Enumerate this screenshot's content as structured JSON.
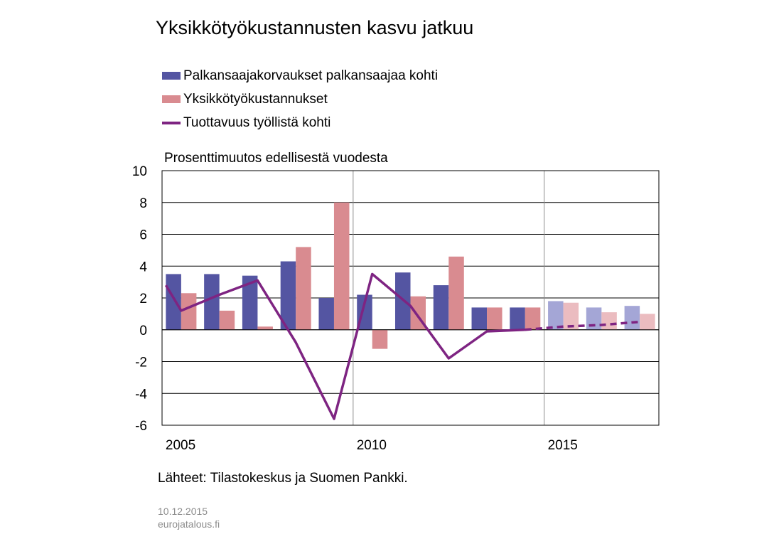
{
  "title": "Yksikkötyökustannusten kasvu jatkuu",
  "unit_label": "Prosenttimuutos edellisestä vuodesta",
  "source": "Lähteet: Tilastokeskus ja Suomen Pankki.",
  "date": "10.12.2015",
  "site": "eurojatalous.fi",
  "colors": {
    "series1": "#5455a2",
    "series1_forecast": "#a4a6d6",
    "series2": "#d98b90",
    "series2_forecast": "#ebbcc0",
    "line": "#7e2482",
    "grid": "#000000"
  },
  "chart_data": {
    "type": "bar",
    "title": "Yksikkötyökustannusten kasvu jatkuu",
    "ylabel": "Prosenttimuutos edellisestä vuodesta",
    "categories": [
      2005,
      2006,
      2007,
      2008,
      2009,
      2010,
      2011,
      2012,
      2013,
      2014,
      2015,
      2016,
      2017
    ],
    "x_tick_labels": [
      "2005",
      "2010",
      "2015"
    ],
    "y_tick_labels": [
      "10",
      "8",
      "6",
      "4",
      "2",
      "0",
      "-2",
      "-4",
      "-6"
    ],
    "ylim": [
      -6,
      10
    ],
    "grid": true,
    "legend_position": "top-left",
    "forecast_from": 2015,
    "series": [
      {
        "name": "Palkansaajakorvaukset palkansaajaa kohti",
        "type": "bar",
        "values": [
          3.5,
          3.5,
          3.4,
          4.3,
          2.0,
          2.2,
          3.6,
          2.8,
          1.4,
          1.4,
          1.8,
          1.4,
          1.5
        ]
      },
      {
        "name": "Yksikkötyökustannukset",
        "type": "bar",
        "values": [
          2.3,
          1.2,
          0.2,
          5.2,
          8.0,
          -1.2,
          2.1,
          4.6,
          1.4,
          1.4,
          1.7,
          1.1,
          1.0
        ]
      },
      {
        "name": "Tuottavuus työllistä kohti",
        "type": "line",
        "x": [
          2004.6,
          2005,
          2006,
          2007,
          2008,
          2009,
          2010,
          2011,
          2012,
          2013,
          2014,
          2015,
          2016,
          2017
        ],
        "values": [
          2.8,
          1.2,
          2.2,
          3.1,
          -0.8,
          -5.6,
          3.5,
          1.5,
          -1.8,
          -0.1,
          0.0,
          0.2,
          0.3,
          0.5
        ]
      }
    ]
  }
}
